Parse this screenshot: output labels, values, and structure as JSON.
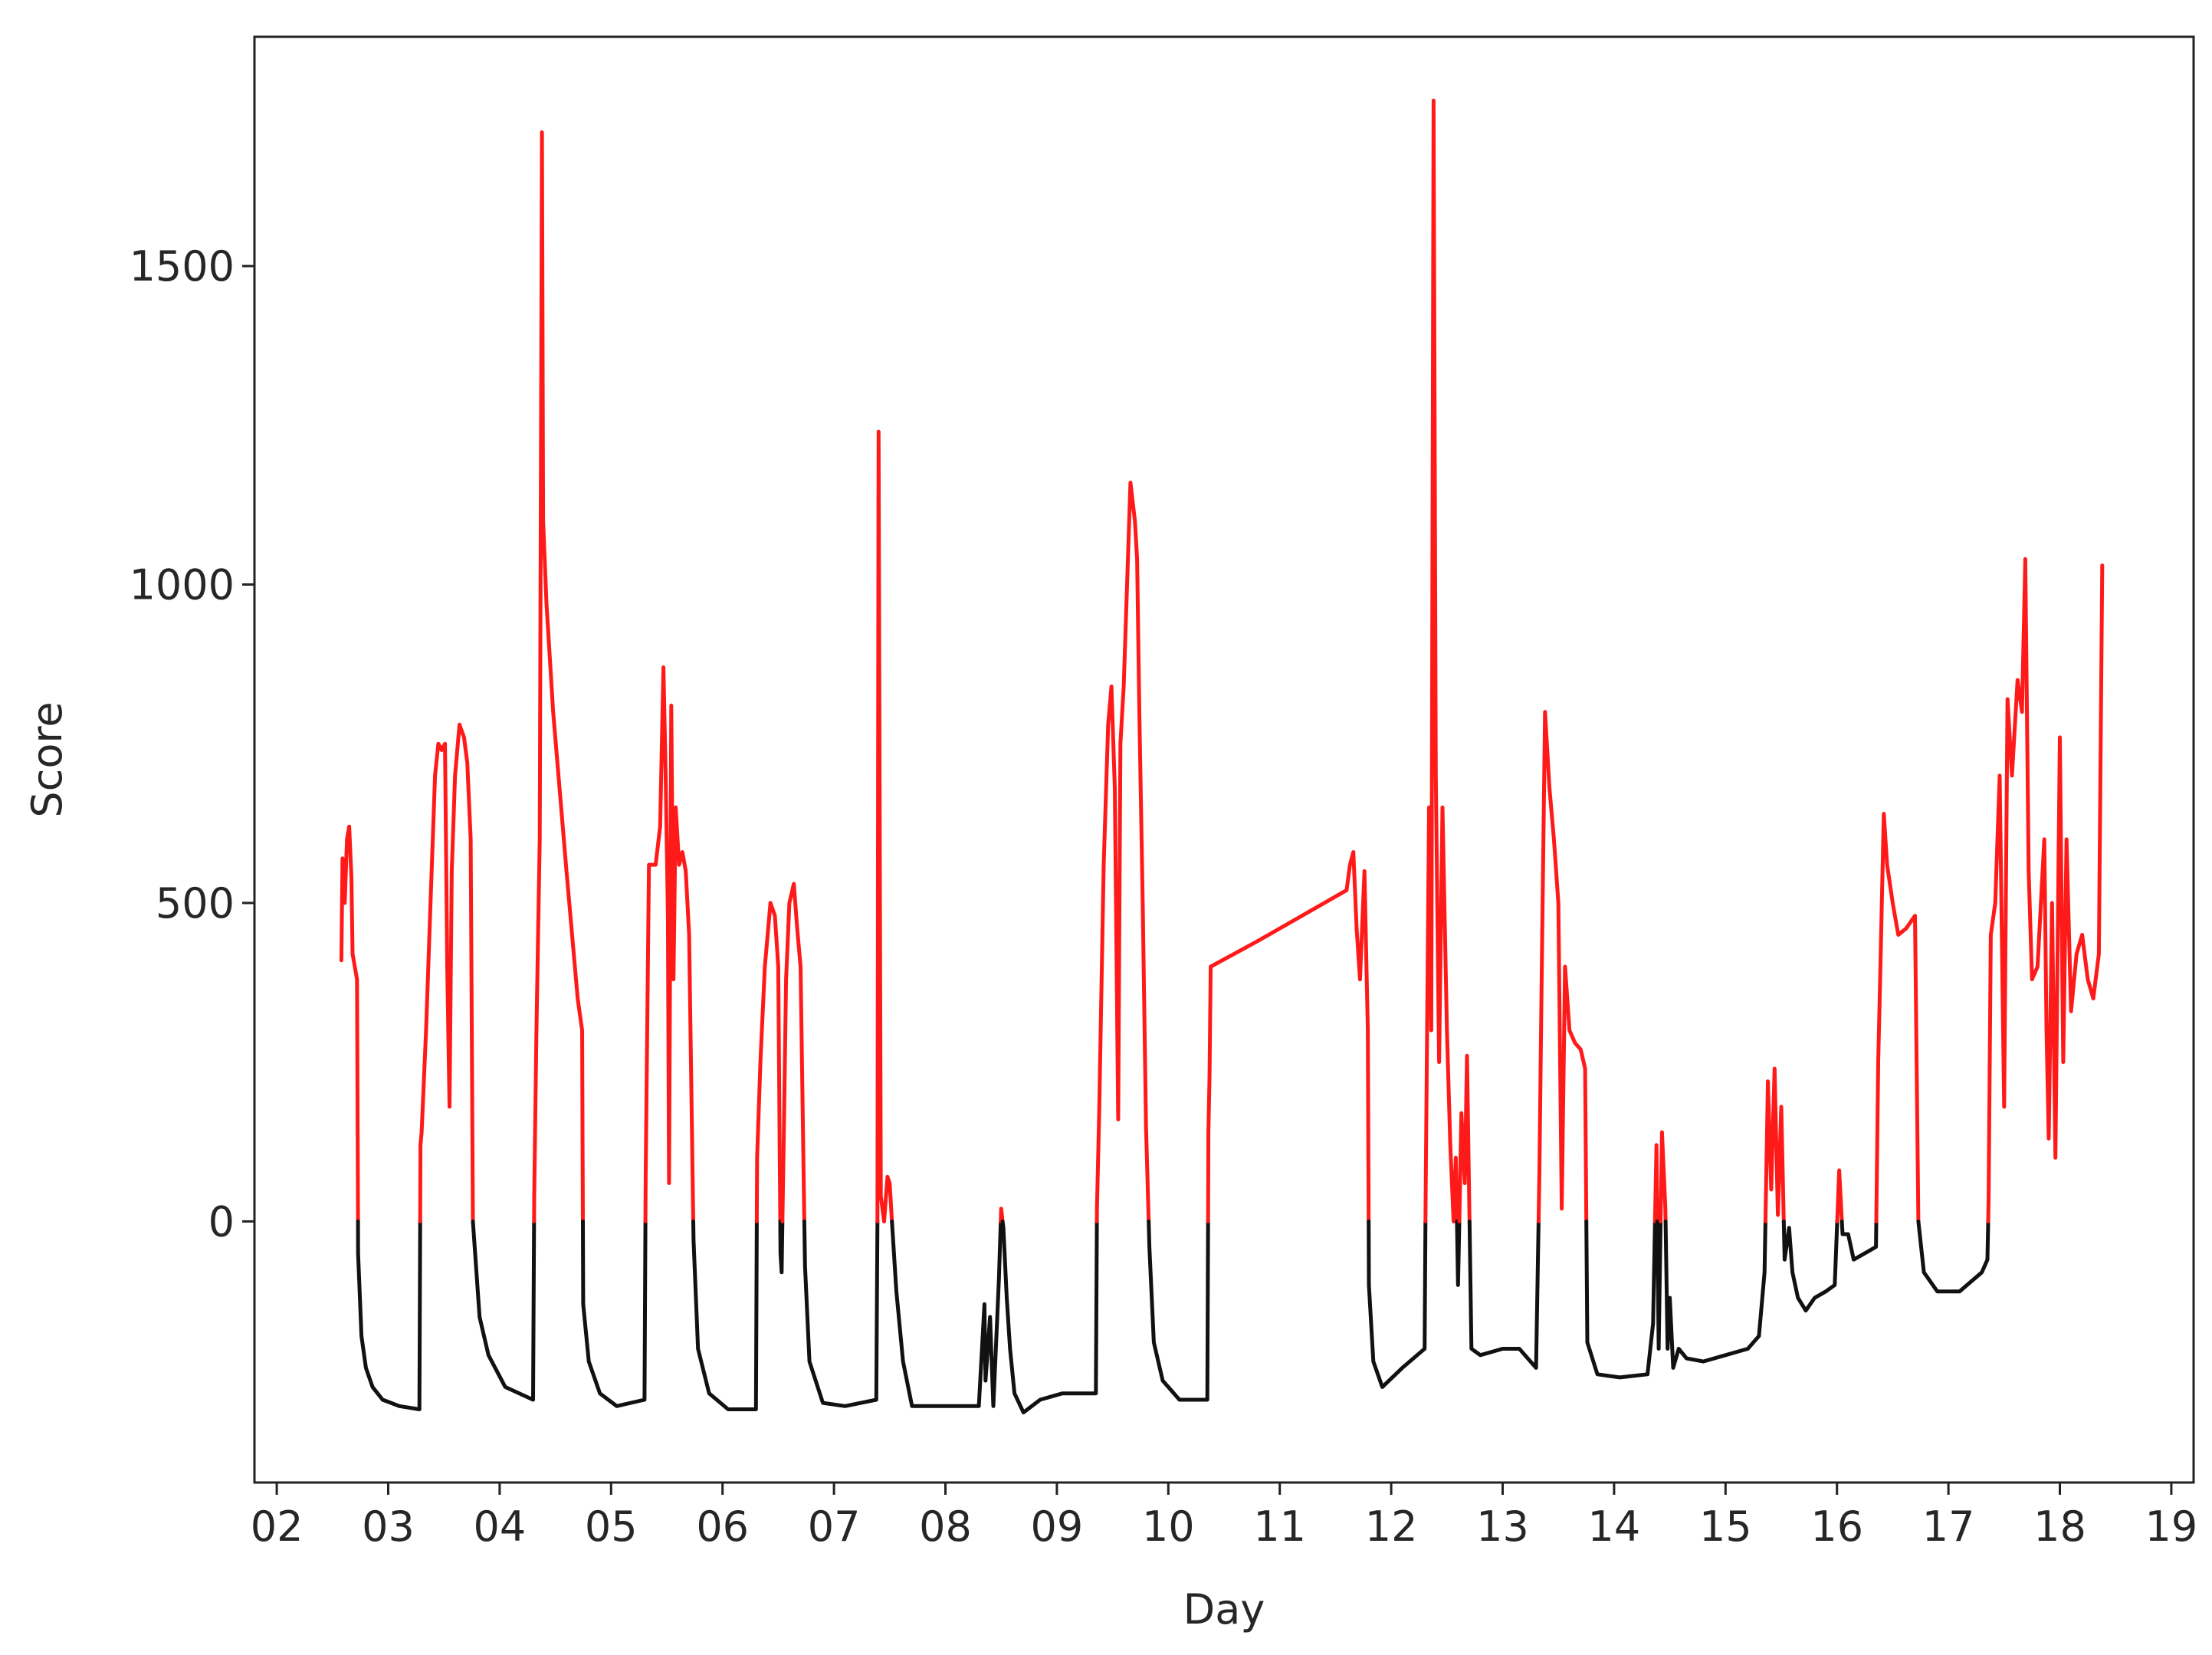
{
  "chart_data": {
    "type": "line",
    "title": "",
    "xlabel": "Day",
    "ylabel": "Score",
    "xlim": [
      1.8,
      19.2
    ],
    "ylim": [
      -410,
      1860
    ],
    "x_ticks": [
      2,
      3,
      4,
      5,
      6,
      7,
      8,
      9,
      10,
      11,
      12,
      13,
      14,
      15,
      16,
      17,
      18,
      19
    ],
    "x_tick_labels": [
      "02",
      "03",
      "04",
      "05",
      "06",
      "07",
      "08",
      "09",
      "10",
      "11",
      "12",
      "13",
      "14",
      "15",
      "16",
      "17",
      "18",
      "19"
    ],
    "y_ticks": [
      0,
      500,
      1000,
      1500
    ],
    "y_tick_labels": [
      "0",
      "500",
      "1000",
      "1500"
    ],
    "grid": false,
    "threshold": 0,
    "color_above_threshold": "#ff1a1a",
    "color_below_threshold": "#111111",
    "series": [
      {
        "points": [
          [
            2.58,
            410
          ],
          [
            2.59,
            570
          ],
          [
            2.61,
            500
          ],
          [
            2.63,
            600
          ],
          [
            2.65,
            620
          ],
          [
            2.67,
            540
          ],
          [
            2.68,
            420
          ],
          [
            2.7,
            400
          ],
          [
            2.72,
            380
          ],
          [
            2.73,
            -50
          ],
          [
            2.76,
            -180
          ],
          [
            2.8,
            -230
          ],
          [
            2.86,
            -260
          ],
          [
            2.95,
            -280
          ],
          [
            3.1,
            -290
          ],
          [
            3.28,
            -295
          ],
          [
            3.29,
            120
          ],
          [
            3.3,
            140
          ],
          [
            3.34,
            300
          ],
          [
            3.38,
            500
          ],
          [
            3.42,
            700
          ],
          [
            3.45,
            750
          ],
          [
            3.48,
            740
          ],
          [
            3.51,
            750
          ],
          [
            3.53,
            400
          ],
          [
            3.55,
            180
          ],
          [
            3.57,
            550
          ],
          [
            3.6,
            700
          ],
          [
            3.64,
            780
          ],
          [
            3.68,
            760
          ],
          [
            3.71,
            720
          ],
          [
            3.74,
            600
          ],
          [
            3.76,
            0
          ],
          [
            3.82,
            -150
          ],
          [
            3.9,
            -210
          ],
          [
            4.05,
            -260
          ],
          [
            4.3,
            -280
          ],
          [
            4.31,
            40
          ],
          [
            4.33,
            300
          ],
          [
            4.36,
            600
          ],
          [
            4.38,
            1710
          ],
          [
            4.39,
            1100
          ],
          [
            4.42,
            970
          ],
          [
            4.48,
            800
          ],
          [
            4.6,
            550
          ],
          [
            4.7,
            350
          ],
          [
            4.74,
            300
          ],
          [
            4.75,
            -130
          ],
          [
            4.8,
            -220
          ],
          [
            4.9,
            -270
          ],
          [
            5.05,
            -290
          ],
          [
            5.3,
            -280
          ],
          [
            5.31,
            70
          ],
          [
            5.34,
            560
          ],
          [
            5.4,
            560
          ],
          [
            5.44,
            620
          ],
          [
            5.47,
            870
          ],
          [
            5.49,
            700
          ],
          [
            5.51,
            480
          ],
          [
            5.52,
            60
          ],
          [
            5.54,
            810
          ],
          [
            5.56,
            380
          ],
          [
            5.58,
            650
          ],
          [
            5.61,
            560
          ],
          [
            5.64,
            580
          ],
          [
            5.67,
            550
          ],
          [
            5.7,
            450
          ],
          [
            5.74,
            -30
          ],
          [
            5.78,
            -200
          ],
          [
            5.88,
            -270
          ],
          [
            6.05,
            -295
          ],
          [
            6.3,
            -295
          ],
          [
            6.31,
            100
          ],
          [
            6.34,
            250
          ],
          [
            6.38,
            400
          ],
          [
            6.43,
            500
          ],
          [
            6.47,
            480
          ],
          [
            6.5,
            400
          ],
          [
            6.52,
            -50
          ],
          [
            6.53,
            -80
          ],
          [
            6.55,
            140
          ],
          [
            6.57,
            380
          ],
          [
            6.6,
            500
          ],
          [
            6.64,
            530
          ],
          [
            6.67,
            460
          ],
          [
            6.7,
            400
          ],
          [
            6.74,
            -70
          ],
          [
            6.78,
            -220
          ],
          [
            6.9,
            -285
          ],
          [
            7.1,
            -290
          ],
          [
            7.38,
            -280
          ],
          [
            7.39,
            0
          ],
          [
            7.4,
            1240
          ],
          [
            7.42,
            40
          ],
          [
            7.45,
            0
          ],
          [
            7.48,
            70
          ],
          [
            7.5,
            60
          ],
          [
            7.52,
            0
          ],
          [
            7.56,
            -110
          ],
          [
            7.62,
            -220
          ],
          [
            7.7,
            -290
          ],
          [
            7.85,
            -290
          ],
          [
            8.05,
            -290
          ],
          [
            8.3,
            -290
          ],
          [
            8.35,
            -130
          ],
          [
            8.36,
            -250
          ],
          [
            8.4,
            -150
          ],
          [
            8.43,
            -290
          ],
          [
            8.46,
            -170
          ],
          [
            8.48,
            -90
          ],
          [
            8.5,
            20
          ],
          [
            8.52,
            -10
          ],
          [
            8.55,
            -120
          ],
          [
            8.58,
            -200
          ],
          [
            8.62,
            -270
          ],
          [
            8.7,
            -300
          ],
          [
            8.85,
            -280
          ],
          [
            9.05,
            -270
          ],
          [
            9.35,
            -270
          ],
          [
            9.36,
            20
          ],
          [
            9.38,
            170
          ],
          [
            9.42,
            560
          ],
          [
            9.46,
            780
          ],
          [
            9.49,
            840
          ],
          [
            9.52,
            680
          ],
          [
            9.55,
            160
          ],
          [
            9.57,
            750
          ],
          [
            9.6,
            840
          ],
          [
            9.63,
            1000
          ],
          [
            9.66,
            1160
          ],
          [
            9.68,
            1130
          ],
          [
            9.7,
            1100
          ],
          [
            9.72,
            1040
          ],
          [
            9.74,
            800
          ],
          [
            9.77,
            500
          ],
          [
            9.8,
            150
          ],
          [
            9.83,
            -40
          ],
          [
            9.87,
            -190
          ],
          [
            9.95,
            -250
          ],
          [
            10.1,
            -280
          ],
          [
            10.35,
            -280
          ],
          [
            10.36,
            140
          ],
          [
            10.37,
            230
          ],
          [
            10.38,
            400
          ],
          [
            10.8,
            440
          ],
          [
            11.2,
            480
          ],
          [
            11.6,
            520
          ],
          [
            11.63,
            560
          ],
          [
            11.66,
            580
          ],
          [
            11.69,
            460
          ],
          [
            11.72,
            380
          ],
          [
            11.76,
            550
          ],
          [
            11.79,
            300
          ],
          [
            11.8,
            -100
          ],
          [
            11.84,
            -220
          ],
          [
            11.92,
            -260
          ],
          [
            12.1,
            -230
          ],
          [
            12.3,
            -200
          ],
          [
            12.31,
            60
          ],
          [
            12.34,
            650
          ],
          [
            12.36,
            300
          ],
          [
            12.38,
            1760
          ],
          [
            12.4,
            700
          ],
          [
            12.43,
            250
          ],
          [
            12.46,
            650
          ],
          [
            12.5,
            300
          ],
          [
            12.53,
            120
          ],
          [
            12.56,
            0
          ],
          [
            12.58,
            100
          ],
          [
            12.6,
            -100
          ],
          [
            12.63,
            170
          ],
          [
            12.66,
            60
          ],
          [
            12.68,
            260
          ],
          [
            12.72,
            -200
          ],
          [
            12.8,
            -210
          ],
          [
            13.0,
            -200
          ],
          [
            13.15,
            -200
          ],
          [
            13.3,
            -230
          ],
          [
            13.33,
            80
          ],
          [
            13.35,
            380
          ],
          [
            13.38,
            800
          ],
          [
            13.42,
            680
          ],
          [
            13.46,
            600
          ],
          [
            13.5,
            500
          ],
          [
            13.53,
            20
          ],
          [
            13.56,
            400
          ],
          [
            13.6,
            300
          ],
          [
            13.65,
            280
          ],
          [
            13.7,
            270
          ],
          [
            13.74,
            240
          ],
          [
            13.76,
            -190
          ],
          [
            13.85,
            -240
          ],
          [
            14.05,
            -245
          ],
          [
            14.3,
            -240
          ],
          [
            14.35,
            -160
          ],
          [
            14.38,
            120
          ],
          [
            14.4,
            -200
          ],
          [
            14.43,
            140
          ],
          [
            14.46,
            20
          ],
          [
            14.48,
            -200
          ],
          [
            14.5,
            -120
          ],
          [
            14.53,
            -230
          ],
          [
            14.58,
            -200
          ],
          [
            14.65,
            -215
          ],
          [
            14.8,
            -220
          ],
          [
            15.0,
            -210
          ],
          [
            15.2,
            -200
          ],
          [
            15.3,
            -180
          ],
          [
            15.35,
            -80
          ],
          [
            15.38,
            220
          ],
          [
            15.41,
            50
          ],
          [
            15.44,
            240
          ],
          [
            15.47,
            10
          ],
          [
            15.5,
            180
          ],
          [
            15.53,
            -60
          ],
          [
            15.57,
            -10
          ],
          [
            15.6,
            -80
          ],
          [
            15.65,
            -120
          ],
          [
            15.72,
            -140
          ],
          [
            15.8,
            -120
          ],
          [
            15.9,
            -110
          ],
          [
            15.98,
            -100
          ],
          [
            16.0,
            -10
          ],
          [
            16.02,
            80
          ],
          [
            16.05,
            -20
          ],
          [
            16.1,
            -20
          ],
          [
            16.15,
            -60
          ],
          [
            16.25,
            -50
          ],
          [
            16.35,
            -40
          ],
          [
            16.37,
            250
          ],
          [
            16.39,
            400
          ],
          [
            16.42,
            640
          ],
          [
            16.45,
            560
          ],
          [
            16.5,
            500
          ],
          [
            16.55,
            450
          ],
          [
            16.62,
            460
          ],
          [
            16.7,
            480
          ],
          [
            16.73,
            0
          ],
          [
            16.78,
            -80
          ],
          [
            16.9,
            -110
          ],
          [
            17.1,
            -110
          ],
          [
            17.3,
            -80
          ],
          [
            17.35,
            -60
          ],
          [
            17.36,
            30
          ],
          [
            17.38,
            450
          ],
          [
            17.42,
            500
          ],
          [
            17.46,
            700
          ],
          [
            17.5,
            180
          ],
          [
            17.53,
            820
          ],
          [
            17.57,
            700
          ],
          [
            17.62,
            850
          ],
          [
            17.66,
            800
          ],
          [
            17.69,
            1040
          ],
          [
            17.72,
            550
          ],
          [
            17.75,
            380
          ],
          [
            17.8,
            400
          ],
          [
            17.86,
            600
          ],
          [
            17.88,
            300
          ],
          [
            17.9,
            130
          ],
          [
            17.93,
            500
          ],
          [
            17.96,
            100
          ],
          [
            18.0,
            760
          ],
          [
            18.03,
            250
          ],
          [
            18.06,
            600
          ],
          [
            18.1,
            330
          ],
          [
            18.15,
            420
          ],
          [
            18.2,
            450
          ],
          [
            18.25,
            380
          ],
          [
            18.3,
            350
          ],
          [
            18.35,
            420
          ],
          [
            18.38,
            1030
          ]
        ]
      }
    ]
  }
}
